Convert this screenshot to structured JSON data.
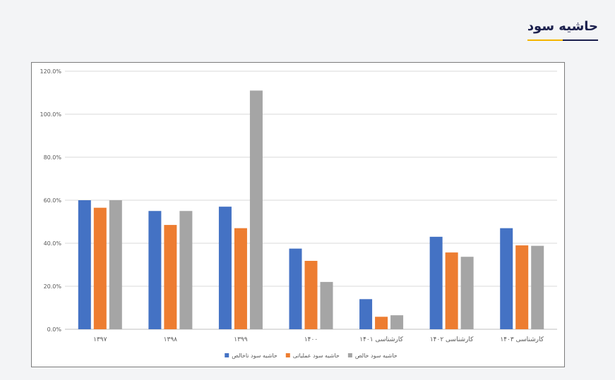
{
  "header": {
    "title": "حاشیه سود",
    "accent_color": "#f4b400",
    "title_color": "#1b1f4d"
  },
  "chart_data": {
    "type": "bar",
    "categories": [
      "۱۳۹۷",
      "۱۳۹۸",
      "۱۳۹۹",
      "۱۴۰۰",
      "کارشناسی ۱۴۰۱",
      "کارشناسی ۱۴۰۲",
      "کارشناسی ۱۴۰۳"
    ],
    "series": [
      {
        "name": "حاشیه سود ناخالص",
        "color": "#4472c4",
        "values": [
          0.6,
          0.55,
          0.57,
          0.375,
          0.14,
          0.43,
          0.47
        ]
      },
      {
        "name": "حاشیه سود عملیاتی",
        "color": "#ed7d31",
        "values": [
          0.565,
          0.485,
          0.47,
          0.318,
          0.058,
          0.357,
          0.39
        ]
      },
      {
        "name": "حاشیه سود خالص",
        "color": "#a5a5a5",
        "values": [
          0.6,
          0.55,
          1.11,
          0.22,
          0.065,
          0.337,
          0.388
        ]
      }
    ],
    "yticks": [
      "0.0%",
      "20.0%",
      "40.0%",
      "60.0%",
      "80.0%",
      "100.0%",
      "120.0%"
    ],
    "ylim": [
      0,
      1.2
    ],
    "grid": true,
    "legend_position": "bottom"
  }
}
